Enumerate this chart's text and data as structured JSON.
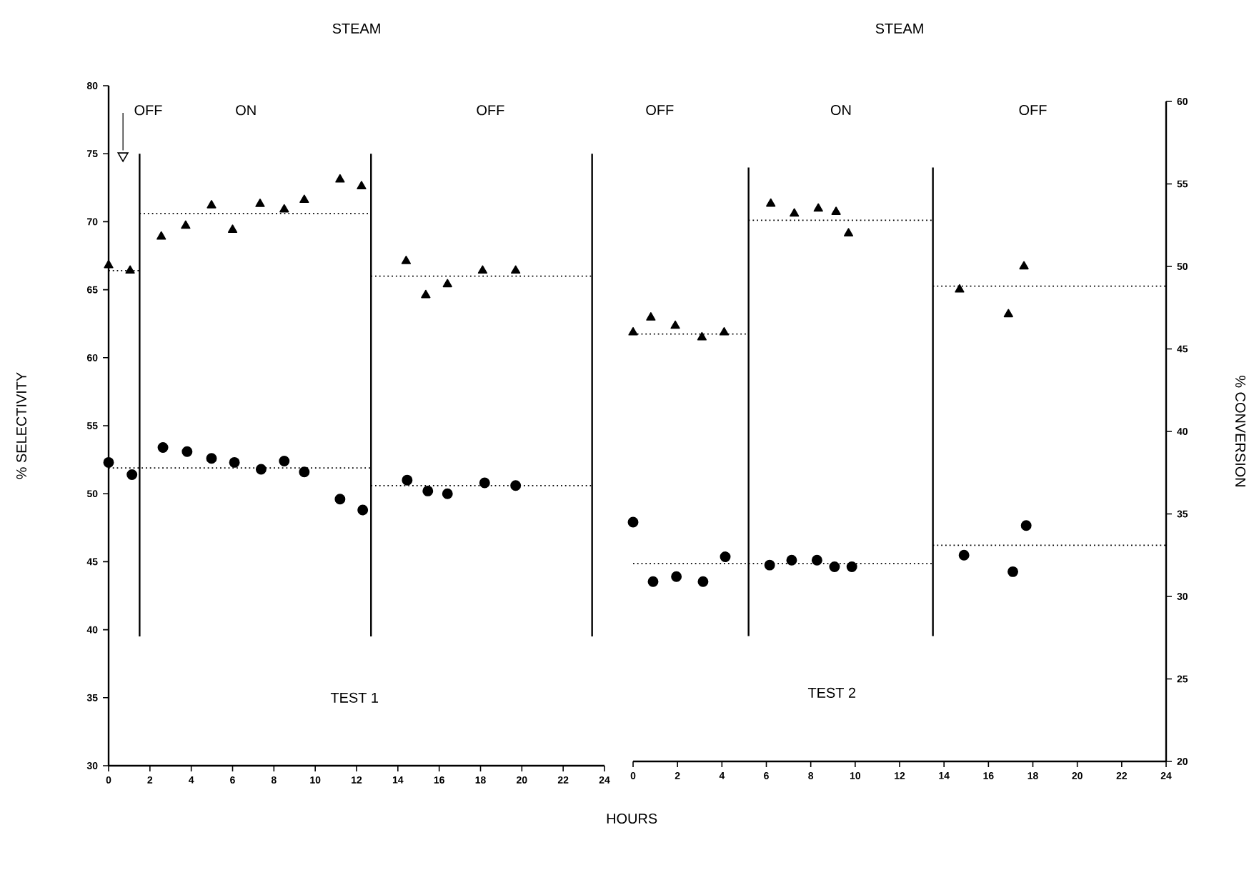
{
  "chart_data": [
    {
      "type": "scatter",
      "title": "STEAM",
      "xlabel": "HOURS",
      "ylabel": "% SELECTIVITY",
      "xlim": [
        0,
        24
      ],
      "xticks": [
        0,
        2,
        4,
        6,
        8,
        10,
        12,
        14,
        16,
        18,
        20,
        22,
        24
      ],
      "ylim": [
        30,
        80
      ],
      "yticks": [
        30,
        35,
        40,
        45,
        50,
        55,
        60,
        65,
        70,
        75,
        80
      ],
      "annotations": [
        "OFF",
        "ON",
        "OFF",
        "TEST 1"
      ],
      "ref_lines": [
        {
          "axis": "x",
          "value": 1.5
        },
        {
          "axis": "x",
          "value": 12.7
        },
        {
          "axis": "x",
          "value": 23.4
        }
      ],
      "series": [
        {
          "marker": "triangle",
          "color": "#000000",
          "x": [
            0,
            1.04,
            2.55,
            3.73,
            4.98,
            6.0,
            7.33,
            8.5,
            9.47,
            11.2,
            12.24,
            14.4,
            15.35,
            16.4,
            18.1,
            19.7
          ],
          "values": [
            66.8,
            66.4,
            68.9,
            69.7,
            71.2,
            69.4,
            71.3,
            70.9,
            71.6,
            73.1,
            72.6,
            67.1,
            64.6,
            65.4,
            66.4,
            66.4
          ]
        },
        {
          "marker": "circle",
          "color": "#000000",
          "x": [
            0,
            1.13,
            2.63,
            3.8,
            4.98,
            6.09,
            7.38,
            8.5,
            9.47,
            11.2,
            12.3,
            14.45,
            15.45,
            16.4,
            18.2,
            19.7
          ],
          "values": [
            52.3,
            51.4,
            53.4,
            53.1,
            52.6,
            52.3,
            51.8,
            52.4,
            51.6,
            49.6,
            48.8,
            51.0,
            50.2,
            50.0,
            50.8,
            50.6
          ]
        },
        {
          "type": "line",
          "line_style": "dotted",
          "marker": "none",
          "color": "#000000",
          "x": [
            0,
            1.5
          ],
          "values": [
            66.4,
            66.4
          ]
        },
        {
          "type": "line",
          "line_style": "dotted",
          "marker": "none",
          "color": "#000000",
          "x": [
            1.5,
            12.7
          ],
          "values": [
            70.6,
            70.6
          ]
        },
        {
          "type": "line",
          "line_style": "dotted",
          "marker": "none",
          "color": "#000000",
          "x": [
            12.7,
            23.4
          ],
          "values": [
            66.0,
            66.0
          ]
        },
        {
          "type": "line",
          "line_style": "dotted",
          "marker": "none",
          "color": "#000000",
          "x": [
            0,
            12.7
          ],
          "values": [
            51.9,
            51.9
          ]
        },
        {
          "type": "line",
          "line_style": "dotted",
          "marker": "none",
          "color": "#000000",
          "x": [
            12.7,
            23.4
          ],
          "values": [
            50.6,
            50.6
          ]
        }
      ]
    },
    {
      "type": "scatter",
      "title": "STEAM",
      "y2label": "% CONVERSION",
      "xlim": [
        0,
        24
      ],
      "xticks": [
        0,
        2,
        4,
        6,
        8,
        10,
        12,
        14,
        16,
        18,
        20,
        22,
        24
      ],
      "y2lim": [
        20,
        60
      ],
      "y2ticks": [
        20,
        25,
        30,
        35,
        40,
        45,
        50,
        55,
        60
      ],
      "annotations": [
        "OFF",
        "ON",
        "OFF",
        "TEST 2"
      ],
      "ref_lines": [
        {
          "axis": "x",
          "value": 5.2
        },
        {
          "axis": "x",
          "value": 13.5
        }
      ],
      "series": [
        {
          "axis": "y2",
          "marker": "triangle",
          "color": "#000000",
          "x": [
            0,
            0.8,
            1.9,
            3.1,
            4.1,
            6.2,
            7.26,
            8.34,
            9.14,
            9.7,
            14.7,
            16.9,
            17.6
          ],
          "values": [
            46.0,
            46.9,
            46.4,
            45.7,
            46.0,
            53.8,
            53.2,
            53.5,
            53.3,
            52.0,
            48.6,
            47.1,
            50.0
          ]
        },
        {
          "axis": "y2",
          "marker": "circle",
          "color": "#000000",
          "x": [
            0,
            0.9,
            1.95,
            3.15,
            4.15,
            6.15,
            7.14,
            8.28,
            9.07,
            9.85,
            14.9,
            17.1,
            17.7
          ],
          "values": [
            34.5,
            30.9,
            31.2,
            30.9,
            32.4,
            31.9,
            32.2,
            32.2,
            31.8,
            31.8,
            32.5,
            31.5,
            34.3
          ]
        },
        {
          "type": "line",
          "axis": "y2",
          "line_style": "dotted",
          "marker": "none",
          "color": "#000000",
          "x": [
            0,
            5.2
          ],
          "values": [
            45.9,
            45.9
          ]
        },
        {
          "type": "line",
          "axis": "y2",
          "line_style": "dotted",
          "marker": "none",
          "color": "#000000",
          "x": [
            5.2,
            13.5
          ],
          "values": [
            52.8,
            52.8
          ]
        },
        {
          "type": "line",
          "axis": "y2",
          "line_style": "dotted",
          "marker": "none",
          "color": "#000000",
          "x": [
            13.5,
            24
          ],
          "values": [
            48.8,
            48.8
          ]
        },
        {
          "type": "line",
          "axis": "y2",
          "line_style": "dotted",
          "marker": "none",
          "color": "#000000",
          "x": [
            0,
            13.5
          ],
          "values": [
            32.0,
            32.0
          ]
        },
        {
          "type": "line",
          "axis": "y2",
          "line_style": "dotted",
          "marker": "none",
          "color": "#000000",
          "x": [
            13.5,
            24
          ],
          "values": [
            33.1,
            33.1
          ]
        }
      ]
    }
  ]
}
